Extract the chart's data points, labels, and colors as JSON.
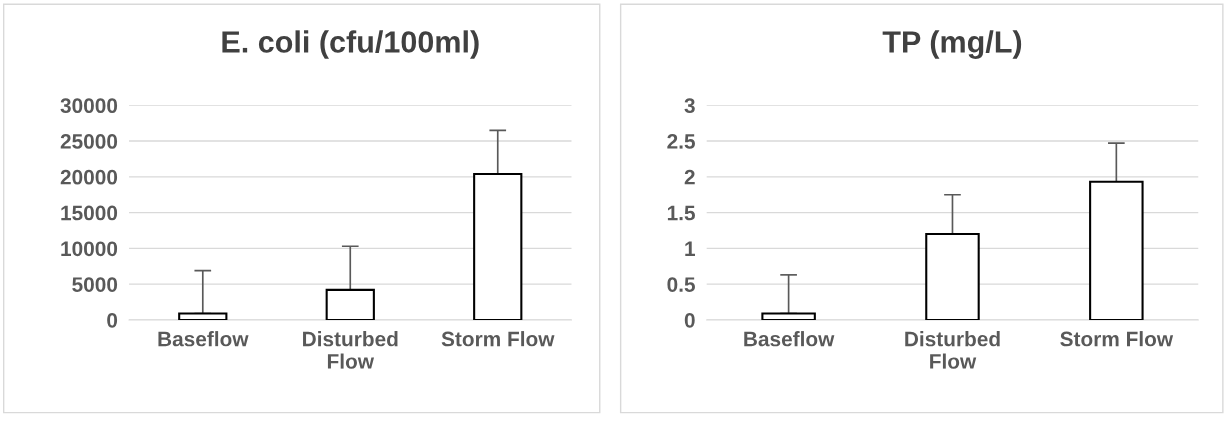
{
  "chart_data": [
    {
      "type": "bar",
      "title": "E. coli (cfu/100ml)",
      "categories": [
        "Baseflow",
        "Disturbed\nFlow",
        "Storm Flow"
      ],
      "series": [
        {
          "color": "#ffffff",
          "values": [
            900,
            4200,
            20400
          ],
          "errors": [
            [
              900,
              6900
            ],
            [
              4200,
              10300
            ],
            [
              20400,
              26500
            ]
          ]
        }
      ],
      "ylim": [
        0,
        30000
      ],
      "yticks": [
        0,
        5000,
        10000,
        15000,
        20000,
        25000,
        30000
      ],
      "grid": "y"
    },
    {
      "type": "bar",
      "title": "TP (mg/L)",
      "categories": [
        "Baseflow",
        "Disturbed\nFlow",
        "Storm Flow"
      ],
      "series": [
        {
          "color": "#ffffff",
          "values": [
            0.09,
            1.2,
            1.93
          ],
          "errors": [
            [
              0.09,
              0.63
            ],
            [
              1.2,
              1.75
            ],
            [
              1.93,
              2.47
            ]
          ]
        }
      ],
      "ylim": [
        0,
        3
      ],
      "yticks": [
        0,
        0.5,
        1,
        1.5,
        2,
        2.5,
        3
      ],
      "grid": "y"
    }
  ]
}
